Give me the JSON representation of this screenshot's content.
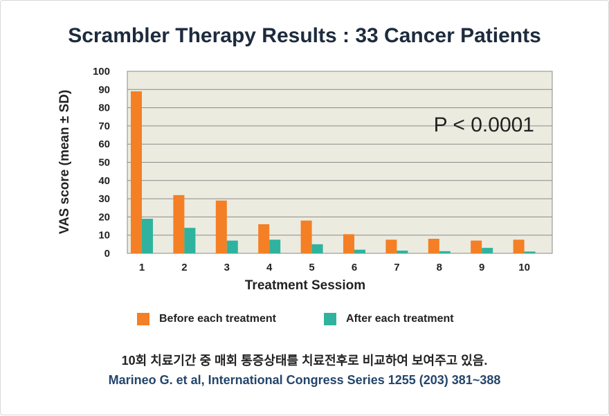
{
  "page": {
    "title": "Scrambler Therapy Results : 33 Cancer Patients",
    "caption_korean": "10회 치료기간 중 매회 통증상태를 치료전후로 비교하여 보여주고 있음.",
    "caption_reference": "Marineo G. et al, International Congress Series 1255 (203) 381~388"
  },
  "chart_data": {
    "type": "bar",
    "title": "Scrambler Therapy Results : 33 Cancer Patients",
    "xlabel": "Treatment Sessiom",
    "ylabel": "VAS score (mean ± SD)",
    "ylim": [
      0,
      100
    ],
    "yticks": [
      0,
      10,
      20,
      30,
      40,
      50,
      60,
      70,
      80,
      90,
      100
    ],
    "grid": true,
    "legend_position": "bottom",
    "annotation": "P < 0.0001",
    "categories": [
      "1",
      "2",
      "3",
      "4",
      "5",
      "6",
      "7",
      "8",
      "9",
      "10"
    ],
    "series": [
      {
        "name": "Before each treatment",
        "color": "#f47f24",
        "values": [
          89,
          32,
          29,
          16,
          18,
          10.5,
          7.5,
          8,
          7,
          7.5
        ]
      },
      {
        "name": "After each treatment",
        "color": "#2fb39e",
        "values": [
          19,
          14,
          7,
          7.5,
          5,
          2,
          1.5,
          1.2,
          3,
          1
        ]
      }
    ],
    "colors": {
      "plot_background": "#ecebe0",
      "gridline": "#8a8a8a",
      "axis_text": "#222222"
    }
  }
}
